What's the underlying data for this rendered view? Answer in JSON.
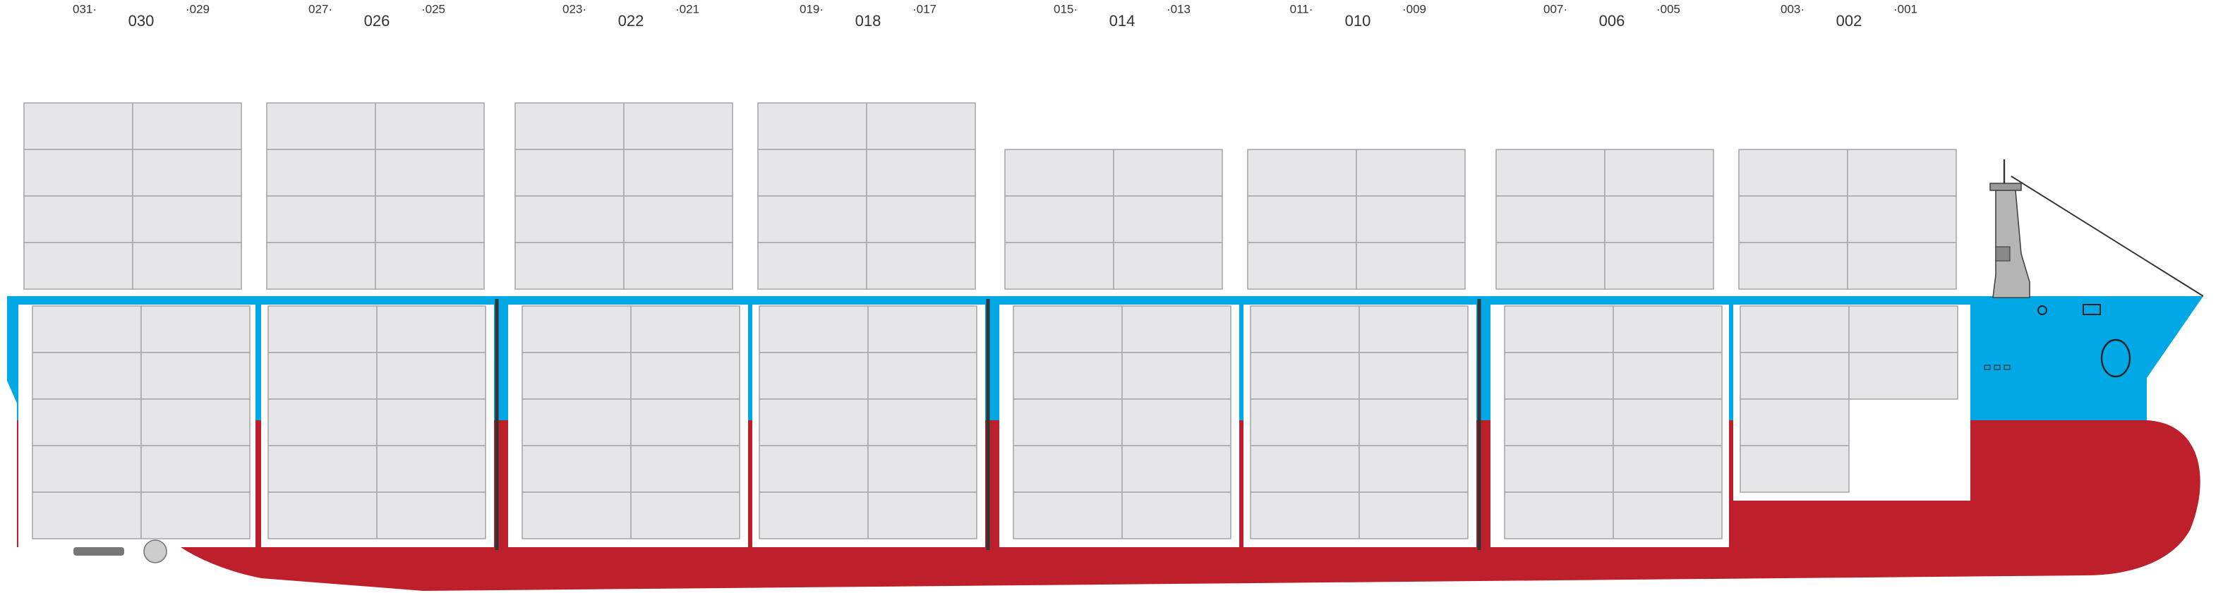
{
  "bays": [
    {
      "left": "031·",
      "center": "030",
      "right": "·029"
    },
    {
      "left": "027·",
      "center": "026",
      "right": "·025"
    },
    {
      "left": "023·",
      "center": "022",
      "right": "·021"
    },
    {
      "left": "019·",
      "center": "018",
      "right": "·017"
    },
    {
      "left": "015·",
      "center": "014",
      "right": "·013"
    },
    {
      "left": "011·",
      "center": "010",
      "right": "·009"
    },
    {
      "left": "007·",
      "center": "006",
      "right": "·005"
    },
    {
      "left": "003·",
      "center": "002",
      "right": "·001"
    }
  ]
}
